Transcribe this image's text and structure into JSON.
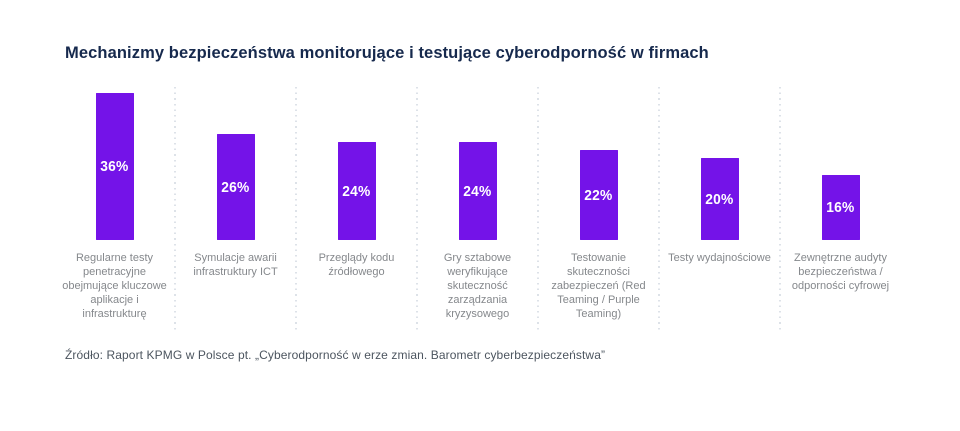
{
  "chart_data": {
    "type": "bar",
    "title": "Mechanizmy bezpieczeństwa monitorujące i testujące cyberodporność w firmach",
    "categories": [
      "Regularne testy penetracyjne obejmujące kluczowe aplikacje i infrastrukturę",
      "Symulacje awarii infrastruktury ICT",
      "Przeglądy kodu źródłowego",
      "Gry sztabowe weryfikujące skuteczność zarządzania kryzysowego",
      "Testowanie skuteczności zabezpieczeń (Red Teaming / Purple Teaming)",
      "Testy wydajnościowe",
      "Zewnętrzne audyty bezpieczeństwa / odporności cyfrowej"
    ],
    "values": [
      36,
      26,
      24,
      24,
      22,
      20,
      16
    ],
    "value_labels": [
      "36%",
      "26%",
      "24%",
      "24%",
      "22%",
      "20%",
      "16%"
    ],
    "xlabel": "",
    "ylabel": "",
    "ylim": [
      0,
      38
    ],
    "legend": false,
    "grid": "dotted vertical separators between categories",
    "bar_color": "#7413e8",
    "value_label_color": "#ffffff",
    "category_label_color": "#85888c",
    "separator_color": "#dde2e8",
    "title_color": "#16294d"
  },
  "source_note": "Źródło: Raport KPMG w Polsce pt. „Cyberodporność w erze zmian. Barometr cyberbezpieczeństwa”"
}
